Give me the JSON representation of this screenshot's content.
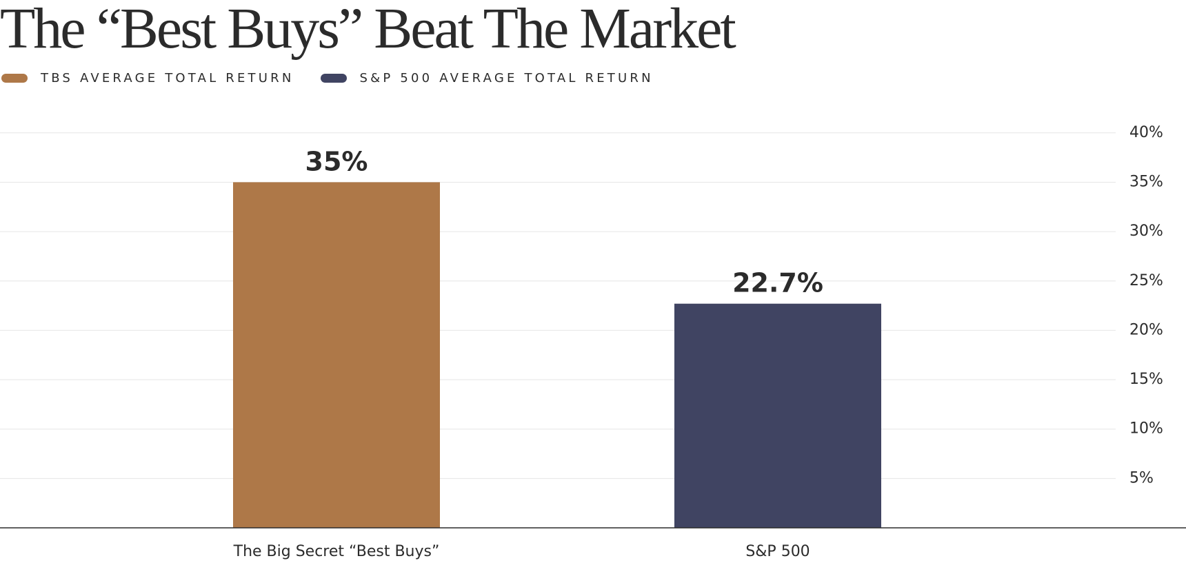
{
  "title": "The “Best Buys” Beat The Market",
  "legend": [
    {
      "label": "TBS AVERAGE TOTAL RETURN",
      "color": "#ae7848"
    },
    {
      "label": "S&P 500 AVERAGE TOTAL RETURN",
      "color": "#404462"
    }
  ],
  "chart_data": {
    "type": "bar",
    "title": "The “Best Buys” Beat The Market",
    "xlabel": "",
    "ylabel": "",
    "categories": [
      "The Big Secret “Best Buys”",
      "S&P 500"
    ],
    "series": [
      {
        "name": "TBS AVERAGE TOTAL RETURN",
        "values": [
          35,
          null
        ],
        "color": "#ae7848"
      },
      {
        "name": "S&P 500 AVERAGE TOTAL RETURN",
        "values": [
          null,
          22.7
        ],
        "color": "#404462"
      }
    ],
    "values": [
      35,
      22.7
    ],
    "value_labels": [
      "35%",
      "22.7%"
    ],
    "colors": [
      "#ae7848",
      "#404462"
    ],
    "ylim": [
      0,
      40
    ],
    "yticks": [
      5,
      10,
      15,
      20,
      25,
      30,
      35,
      40
    ],
    "ytick_labels": [
      "5%",
      "10%",
      "15%",
      "20%",
      "25%",
      "30%",
      "35%",
      "40%"
    ],
    "y_axis_position": "right",
    "grid": true,
    "legend_position": "top-left"
  }
}
